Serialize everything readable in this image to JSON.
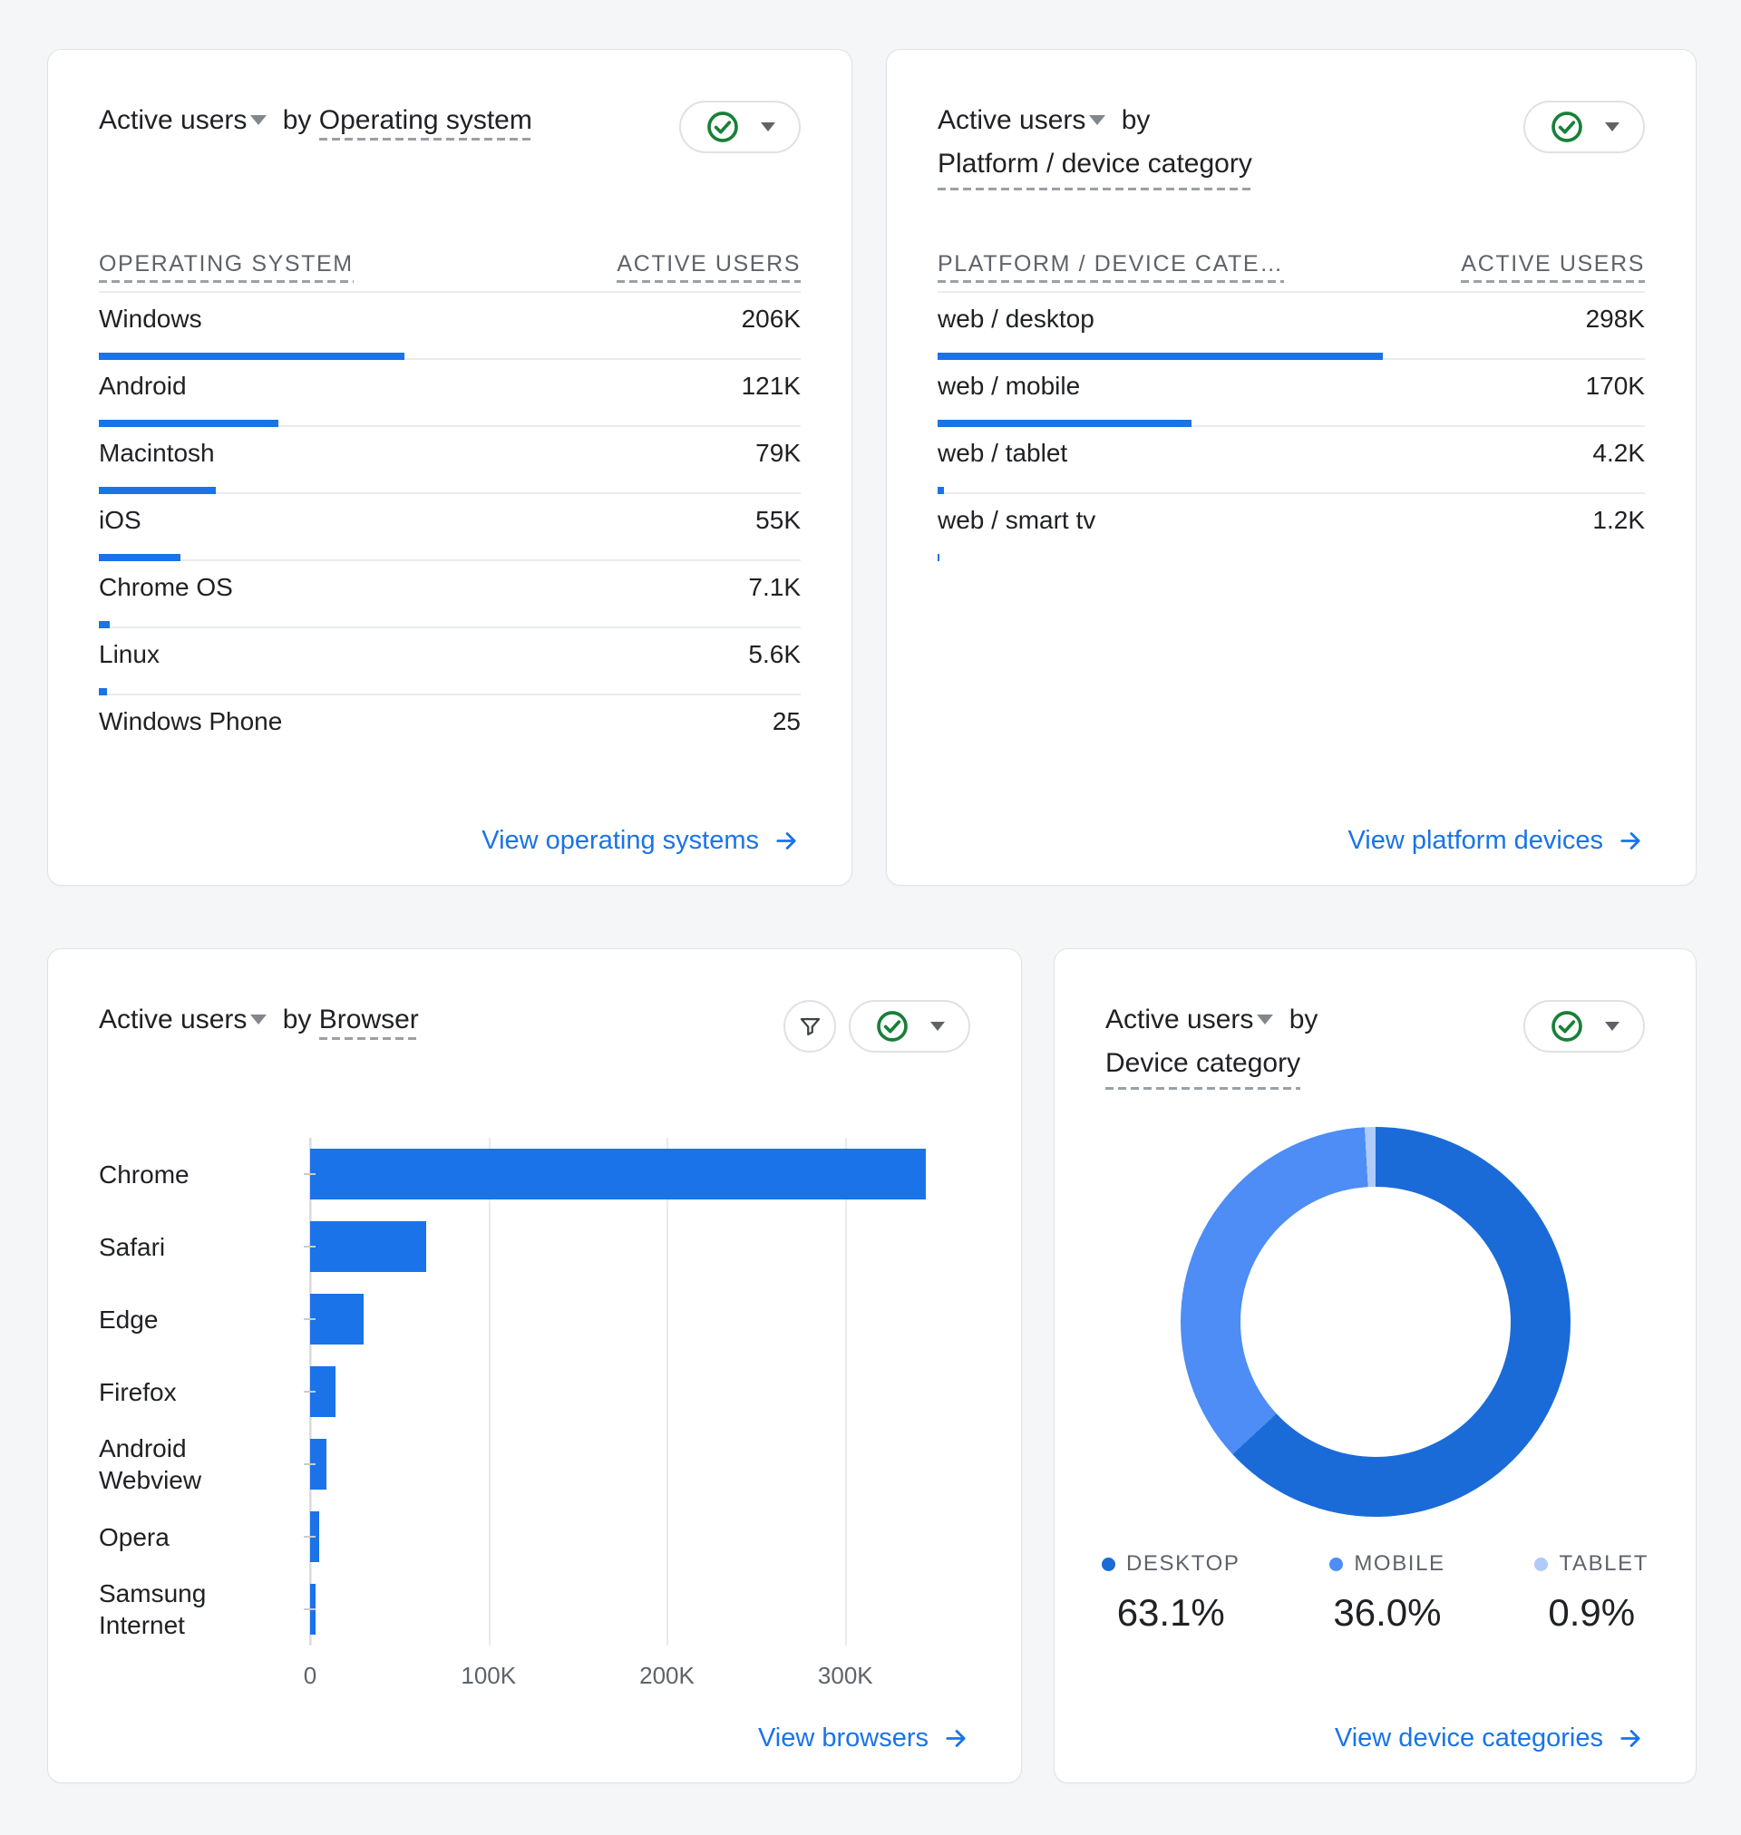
{
  "cards": {
    "os": {
      "metric_label": "Active users",
      "by_label": "by",
      "dimension_label": "Operating system",
      "link_label": "View operating systems"
    },
    "platform": {
      "metric_label": "Active users",
      "by_label": "by",
      "dimension_label": "Platform / device category",
      "link_label": "View platform devices"
    },
    "browser": {
      "metric_label": "Active users",
      "by_label": "by",
      "dimension_label": "Browser",
      "link_label": "View browsers"
    },
    "device": {
      "metric_label": "Active users",
      "by_label": "by",
      "dimension_label": "Device category",
      "link_label": "View device categories"
    }
  },
  "icons": {
    "status": "check-circle-icon",
    "expand": "caret-down-icon",
    "filter": "filter-icon",
    "link_arrow": "arrow-forward-icon"
  },
  "colors": {
    "accent_blue": "#1a73e8",
    "check_green": "#188038",
    "separator": "#e9ebee",
    "donut_desktop": "#1a6bd8",
    "donut_mobile": "#4d8df5",
    "donut_tablet": "#aecbfa"
  },
  "chart_data": [
    {
      "id": "os",
      "type": "table",
      "title": "Active users by Operating system",
      "columns": [
        "OPERATING SYSTEM",
        "ACTIVE USERS"
      ],
      "rows": [
        {
          "label": "Windows",
          "value": 206000,
          "value_label": "206K"
        },
        {
          "label": "Android",
          "value": 121000,
          "value_label": "121K"
        },
        {
          "label": "Macintosh",
          "value": 79000,
          "value_label": "79K"
        },
        {
          "label": "iOS",
          "value": 55000,
          "value_label": "55K"
        },
        {
          "label": "Chrome OS",
          "value": 7100,
          "value_label": "7.1K"
        },
        {
          "label": "Linux",
          "value": 5600,
          "value_label": "5.6K"
        },
        {
          "label": "Windows Phone",
          "value": 25,
          "value_label": "25"
        }
      ]
    },
    {
      "id": "platform",
      "type": "table",
      "title": "Active users by Platform / device category",
      "columns": [
        "PLATFORM / DEVICE CATE…",
        "ACTIVE USERS"
      ],
      "rows": [
        {
          "label": "web / desktop",
          "value": 298000,
          "value_label": "298K"
        },
        {
          "label": "web / mobile",
          "value": 170000,
          "value_label": "170K"
        },
        {
          "label": "web / tablet",
          "value": 4200,
          "value_label": "4.2K"
        },
        {
          "label": "web / smart tv",
          "value": 1200,
          "value_label": "1.2K"
        }
      ]
    },
    {
      "id": "browser",
      "type": "bar",
      "orientation": "horizontal",
      "title": "Active users by Browser",
      "categories": [
        "Chrome",
        "Safari",
        "Edge",
        "Firefox",
        "Android Webview",
        "Opera",
        "Samsung Internet"
      ],
      "values": [
        345000,
        65000,
        30000,
        14000,
        9000,
        5000,
        3000
      ],
      "x_ticks": [
        {
          "value": 0,
          "label": "0"
        },
        {
          "value": 100000,
          "label": "100K"
        },
        {
          "value": 200000,
          "label": "200K"
        },
        {
          "value": 300000,
          "label": "300K"
        }
      ],
      "x_max": 370000,
      "grid": "vertical gridlines on",
      "bar_color": "#1a73e8"
    },
    {
      "id": "device",
      "type": "pie",
      "donut": true,
      "title": "Active users by Device category",
      "legend_position": "bottom",
      "slices": [
        {
          "label": "DESKTOP",
          "pct": 63.1,
          "pct_label": "63.1%",
          "color": "#1a6bd8"
        },
        {
          "label": "MOBILE",
          "pct": 36.0,
          "pct_label": "36.0%",
          "color": "#4d8df5"
        },
        {
          "label": "TABLET",
          "pct": 0.9,
          "pct_label": "0.9%",
          "color": "#aecbfa"
        }
      ]
    }
  ]
}
